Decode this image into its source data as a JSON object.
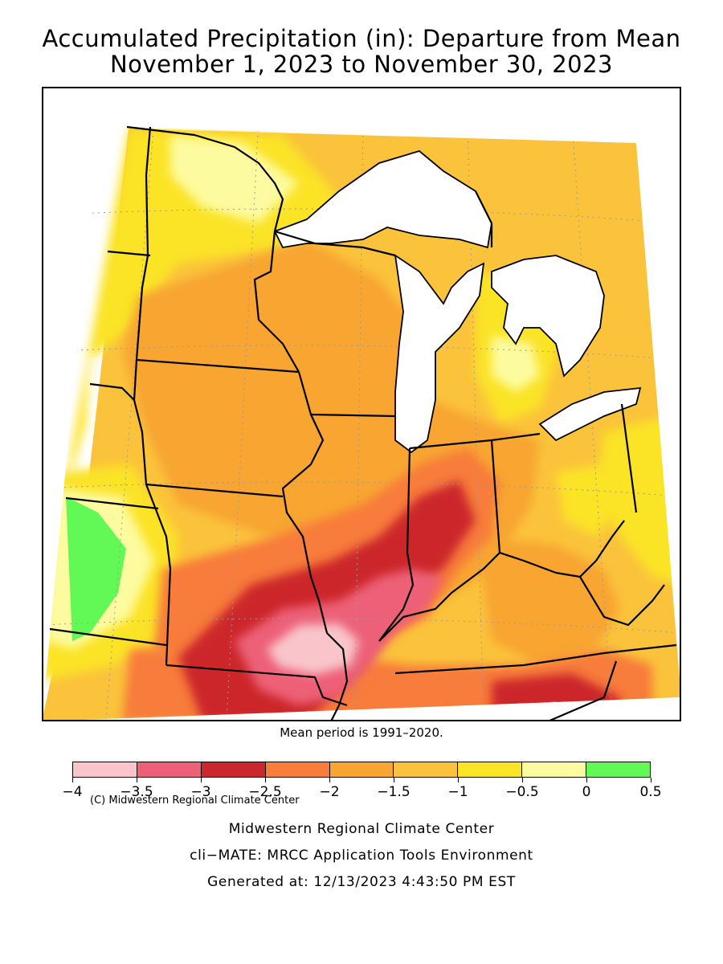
{
  "title_line1": "Accumulated Precipitation (in): Departure from Mean",
  "title_line2": "November 1, 2023 to November 30, 2023",
  "map_credit": "(C) Midwestern Regional Climate Center",
  "mean_period_note": "Mean period is 1991–2020.",
  "legend": {
    "unit": "in",
    "bins": [
      {
        "min": -4,
        "max": -3.5,
        "color": "#f9c5cb"
      },
      {
        "min": -3.5,
        "max": -3,
        "color": "#ed6177"
      },
      {
        "min": -3,
        "max": -2.5,
        "color": "#cc272c"
      },
      {
        "min": -2.5,
        "max": -2,
        "color": "#f87c3a"
      },
      {
        "min": -2,
        "max": -1.5,
        "color": "#f8a531"
      },
      {
        "min": -1.5,
        "max": -1,
        "color": "#fbc33b"
      },
      {
        "min": -1,
        "max": -0.5,
        "color": "#fbe325"
      },
      {
        "min": -0.5,
        "max": 0,
        "color": "#fdfb9f"
      },
      {
        "min": 0,
        "max": 0.5,
        "color": "#62f957"
      }
    ],
    "tick_labels": [
      "−4",
      "−3.5",
      "−3",
      "−2.5",
      "−2",
      "−1.5",
      "−1",
      "−0.5",
      "0",
      "0.5"
    ]
  },
  "footer": {
    "line1": "Midwestern Regional Climate Center",
    "line2": "cli−MATE: MRCC Application Tools Environment",
    "line3": "Generated at: 12/13/2023 4:43:50 PM EST"
  },
  "map_colors": {
    "lake": "#ffffff",
    "outside": "#ffffff",
    "border": "#000000",
    "grid": "#b0b0b0"
  }
}
